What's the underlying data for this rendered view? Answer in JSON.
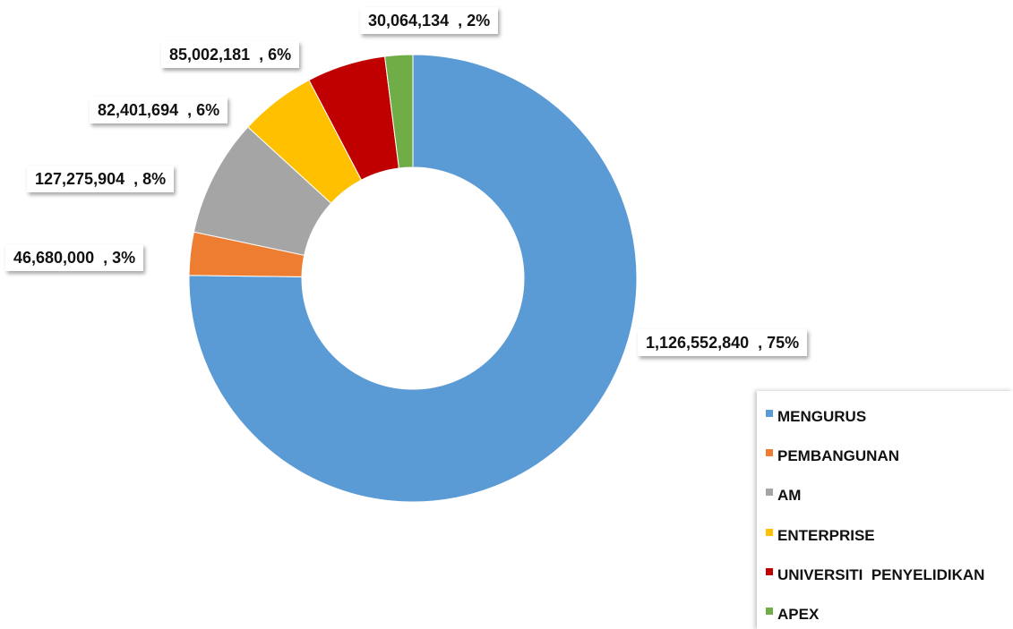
{
  "chart_data": {
    "type": "pie",
    "subtype": "donut",
    "categories": [
      "MENGURUS",
      "PEMBANGUNAN",
      "AM",
      "ENTERPRISE",
      "UNIVERSITI  PENYELIDIKAN",
      "APEX"
    ],
    "values": [
      1126552840,
      46680000,
      127275904,
      82401694,
      85002181,
      30064134
    ],
    "percentages": [
      "75%",
      "3%",
      "8%",
      "6%",
      "6%",
      "2%"
    ],
    "data_labels": [
      "1,126,552,840  , 75%",
      "46,680,000  , 3%",
      "127,275,904  , 8%",
      "82,401,694  , 6%",
      "85,002,181  , 6%",
      "30,064,134  , 2%"
    ],
    "colors": [
      "#5b9bd5",
      "#ed7d31",
      "#a5a5a5",
      "#ffc000",
      "#c00000",
      "#70ad47"
    ],
    "legend_position": "bottom-right"
  }
}
